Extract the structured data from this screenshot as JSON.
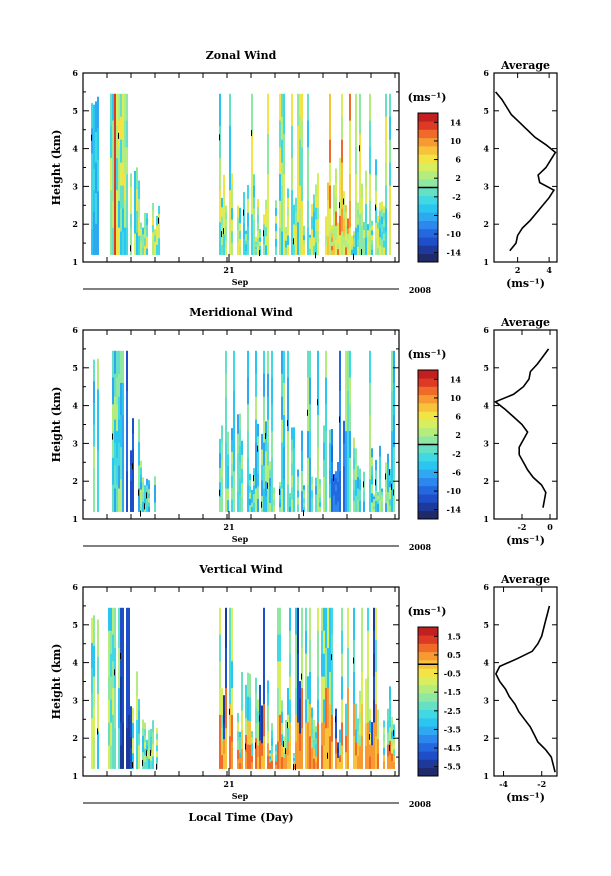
{
  "chart_data": [
    {
      "type": "heatmap",
      "title": "Zonal Wind",
      "ylabel": "Height (km)",
      "ylim": [
        1,
        6
      ],
      "yticks": [
        "1",
        "2",
        "3",
        "4",
        "5",
        "6"
      ],
      "xticks": [
        "21"
      ],
      "month_label": "Sep",
      "year_label": "2008",
      "colorbar_unit": "(ms⁻¹)",
      "colorbar_ticks": [
        "14",
        "10",
        "6",
        "2",
        "-2",
        "-6",
        "-10",
        "-14"
      ],
      "colorbar_range": [
        -16,
        16
      ],
      "average": {
        "title": "Average",
        "xlabel": "(ms⁻¹)",
        "xticks": [
          "2",
          "4"
        ],
        "xlim": [
          0.5,
          4.5
        ],
        "yticks": [
          "1",
          "2",
          "3",
          "4",
          "5",
          "6"
        ],
        "height": [
          1.3,
          1.5,
          1.7,
          1.9,
          2.1,
          2.3,
          2.5,
          2.7,
          2.9,
          3.1,
          3.3,
          3.5,
          3.7,
          3.9,
          4.1,
          4.3,
          4.5,
          4.7,
          4.9,
          5.1,
          5.3,
          5.5
        ],
        "value": [
          1.5,
          1.9,
          2.0,
          2.3,
          2.8,
          3.2,
          3.6,
          4.0,
          4.3,
          3.4,
          3.3,
          3.8,
          4.1,
          4.4,
          3.8,
          3.1,
          2.6,
          2.1,
          1.6,
          1.3,
          1.0,
          0.6
        ]
      }
    },
    {
      "type": "heatmap",
      "title": "Meridional Wind",
      "ylabel": "Height (km)",
      "ylim": [
        1,
        6
      ],
      "yticks": [
        "1",
        "2",
        "3",
        "4",
        "5",
        "6"
      ],
      "xticks": [
        "21"
      ],
      "month_label": "Sep",
      "year_label": "2008",
      "colorbar_unit": "(ms⁻¹)",
      "colorbar_ticks": [
        "14",
        "10",
        "6",
        "2",
        "-2",
        "-6",
        "-10",
        "-14"
      ],
      "colorbar_range": [
        -16,
        16
      ],
      "average": {
        "title": "Average",
        "xlabel": "(ms⁻¹)",
        "xticks": [
          "-2",
          "0"
        ],
        "xlim": [
          -4,
          0.5
        ],
        "yticks": [
          "1",
          "2",
          "3",
          "4",
          "5",
          "6"
        ],
        "height": [
          1.3,
          1.5,
          1.7,
          1.9,
          2.1,
          2.3,
          2.5,
          2.7,
          2.9,
          3.1,
          3.3,
          3.5,
          3.7,
          3.9,
          4.1,
          4.3,
          4.5,
          4.7,
          4.9,
          5.1,
          5.3,
          5.5
        ],
        "value": [
          -0.5,
          -0.4,
          -0.3,
          -0.6,
          -1.2,
          -1.6,
          -1.9,
          -2.2,
          -2.2,
          -1.9,
          -1.6,
          -2.0,
          -2.6,
          -3.2,
          -3.9,
          -2.6,
          -1.9,
          -1.5,
          -1.4,
          -0.9,
          -0.5,
          -0.1
        ]
      }
    },
    {
      "type": "heatmap",
      "title": "Vertical Wind",
      "ylabel": "Height (km)",
      "xlabel": "Local Time (Day)",
      "ylim": [
        1,
        6
      ],
      "yticks": [
        "1",
        "2",
        "3",
        "4",
        "5",
        "6"
      ],
      "xticks": [
        "21"
      ],
      "month_label": "Sep",
      "year_label": "2008",
      "colorbar_unit": "(ms⁻¹)",
      "colorbar_ticks": [
        "1.5",
        "0.5",
        "-0.5",
        "-1.5",
        "-2.5",
        "-3.5",
        "-4.5",
        "-5.5"
      ],
      "colorbar_range": [
        -6,
        2
      ],
      "average": {
        "title": "Average",
        "xlabel": "(ms⁻¹)",
        "xticks": [
          "-4",
          "-2"
        ],
        "xlim": [
          -4.5,
          -1.2
        ],
        "yticks": [
          "1",
          "2",
          "3",
          "4",
          "5",
          "6"
        ],
        "height": [
          1.1,
          1.3,
          1.5,
          1.7,
          1.9,
          2.1,
          2.3,
          2.5,
          2.7,
          2.9,
          3.1,
          3.3,
          3.5,
          3.7,
          3.9,
          4.1,
          4.3,
          4.5,
          4.7,
          4.9,
          5.1,
          5.3,
          5.5
        ],
        "value": [
          -1.3,
          -1.4,
          -1.5,
          -1.8,
          -2.2,
          -2.4,
          -2.6,
          -2.9,
          -3.2,
          -3.4,
          -3.7,
          -3.9,
          -4.2,
          -4.4,
          -4.2,
          -3.3,
          -2.5,
          -2.2,
          -2.0,
          -1.9,
          -1.8,
          -1.7,
          -1.6
        ]
      }
    }
  ]
}
